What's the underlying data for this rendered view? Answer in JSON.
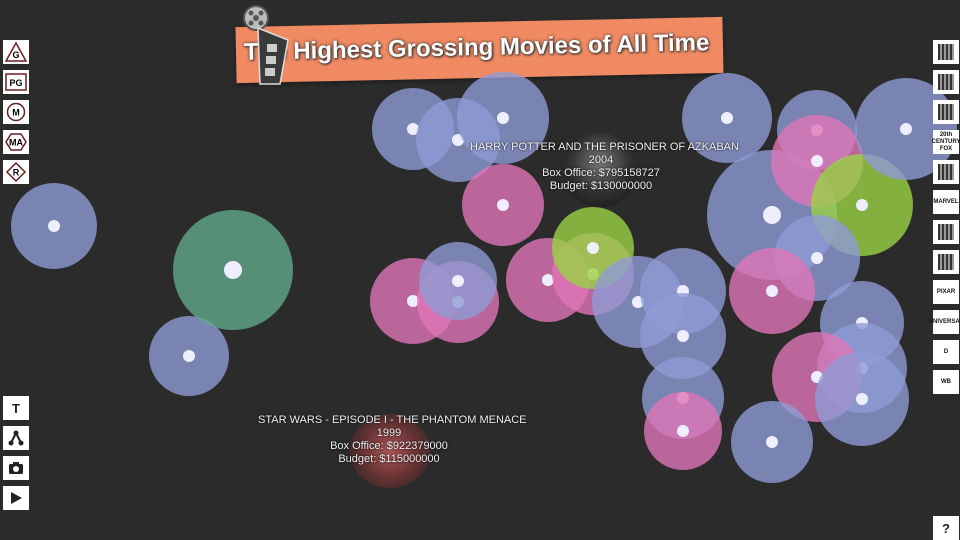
{
  "title": "The Highest Grossing Movies of All Time",
  "ratings": [
    {
      "label": "G",
      "shape": "triangle"
    },
    {
      "label": "PG",
      "shape": "square"
    },
    {
      "label": "M",
      "shape": "circle"
    },
    {
      "label": "MA",
      "shape": "hexagon"
    },
    {
      "label": "R",
      "shape": "diamond"
    }
  ],
  "tools": [
    {
      "label": "T",
      "icon": "text-icon"
    },
    {
      "label": "",
      "icon": "network-icon"
    },
    {
      "label": "",
      "icon": "camera-icon"
    },
    {
      "label": "",
      "icon": "play-icon"
    }
  ],
  "studios": [
    {
      "name": "paramount-logo",
      "label": ""
    },
    {
      "name": "columbia-logo",
      "label": ""
    },
    {
      "name": "dreamworks-logo",
      "label": ""
    },
    {
      "name": "20th-century-fox-logo",
      "label": "20th CENTURY FOX"
    },
    {
      "name": "studio-logo-5",
      "label": ""
    },
    {
      "name": "marvel-logo",
      "label": "MARVEL"
    },
    {
      "name": "studio-logo-7",
      "label": ""
    },
    {
      "name": "studio-logo-8",
      "label": ""
    },
    {
      "name": "pixar-logo",
      "label": "PIXAR"
    },
    {
      "name": "universal-logo",
      "label": "UNIVERSAL"
    },
    {
      "name": "disney-logo",
      "label": "D"
    },
    {
      "name": "warner-bros-logo",
      "label": "WB"
    }
  ],
  "help_label": "?",
  "colors": {
    "blue": "#8e9bd4",
    "pink": "#e075b6",
    "green": "#9ad244",
    "teal": "#5fa98a",
    "banner": "#f08a62"
  },
  "tooltips": [
    {
      "title": "HARRY POTTER AND THE PRISONER OF AZKABAN",
      "year": "2004",
      "box_office": "Box Office: $795158727",
      "budget": "Budget: $130000000"
    },
    {
      "title": "STAR WARS - EPISODE I - THE PHANTOM MENACE",
      "year": "1999",
      "box_office": "Box Office: $922379000",
      "budget": "Budget: $115000000"
    }
  ]
}
